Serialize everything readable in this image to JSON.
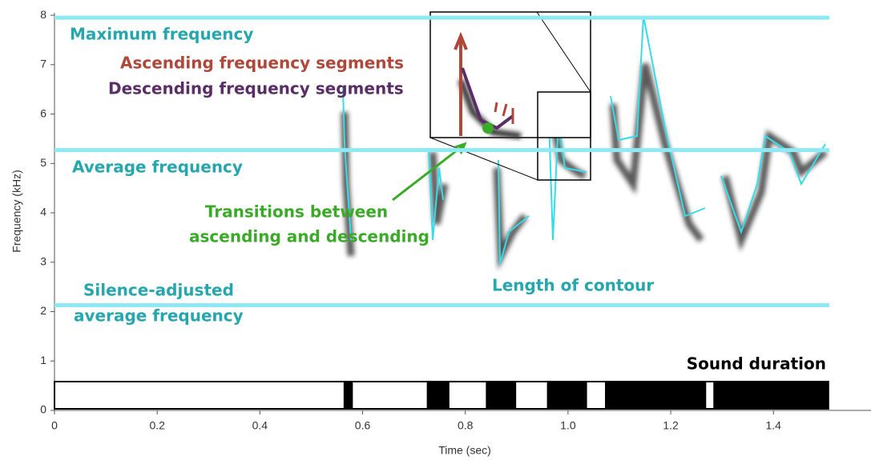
{
  "chart_data": {
    "type": "spectrogram",
    "x_label": "Time (sec)",
    "y_label": "Frequency (kHz)",
    "xlim": [
      0,
      1.59
    ],
    "ylim": [
      0,
      8.05
    ],
    "xticks": [
      0,
      0.2,
      0.4,
      0.6,
      0.8,
      {
        "value": 1,
        "label": "1.0"
      },
      1.2,
      1.4
    ],
    "yticks": [
      0,
      1,
      2,
      3,
      4,
      5,
      6,
      7,
      8
    ],
    "reference_lines": [
      {
        "label": [
          "Maximum frequency"
        ],
        "value": 7.95,
        "color": "#8ee9f2"
      },
      {
        "label": [
          "Average frequency"
        ],
        "value": 5.27,
        "color": "#8ee9f2"
      },
      {
        "label": [
          "Silence-adjusted",
          "average frequency"
        ],
        "value": 2.13,
        "color": "#8ee9f2"
      }
    ],
    "annotations": [
      {
        "label": [
          "Ascending frequency segments"
        ],
        "color": "#b0483a"
      },
      {
        "label": [
          "Descending frequency segments"
        ],
        "color": "#5a2d66"
      },
      {
        "label": [
          "Transitions between",
          "ascending and descending"
        ],
        "color": "#3aaa28"
      },
      {
        "label": [
          "Length of contour"
        ],
        "color": "#26a6ad"
      }
    ],
    "sound_duration": {
      "label": "Sound duration",
      "color": "#000000",
      "span": [
        0,
        1.507
      ],
      "segments": [
        [
          0.563,
          0.581
        ],
        [
          0.725,
          0.769
        ],
        [
          0.84,
          0.899
        ],
        [
          0.959,
          1.037
        ],
        [
          1.072,
          1.269
        ],
        [
          1.283,
          1.507
        ]
      ]
    }
  }
}
